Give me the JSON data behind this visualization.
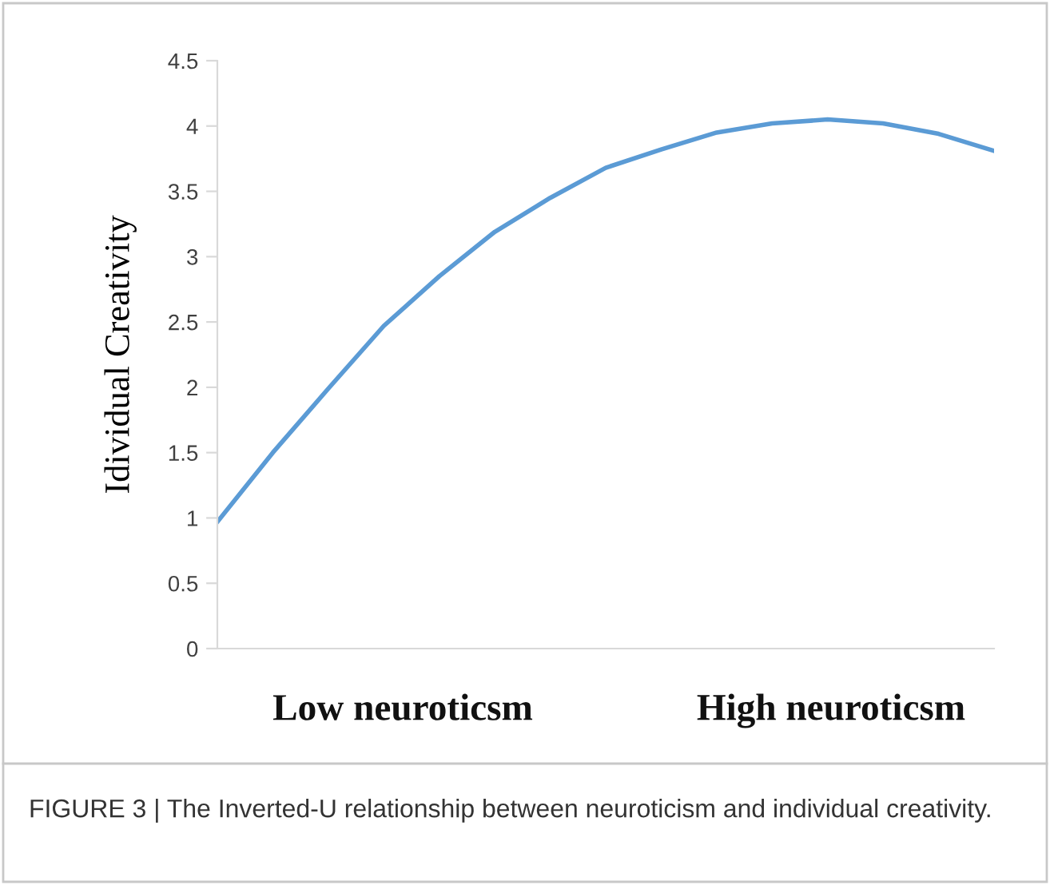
{
  "chart_data": {
    "type": "line",
    "ylabel": "Idividual Creativity",
    "categories": [
      null,
      null,
      null,
      null,
      null,
      null,
      null,
      null,
      null,
      null,
      null,
      null,
      null,
      null,
      null
    ],
    "series": [
      {
        "color": "#5b9bd5",
        "values": [
          0.97,
          1.5,
          1.99,
          2.47,
          2.85,
          3.19,
          3.45,
          3.68,
          3.82,
          3.95,
          4.02,
          4.05,
          4.02,
          3.94,
          3.81
        ]
      }
    ],
    "ylim": [
      0,
      4.5
    ],
    "yticks": [
      0,
      0.5,
      1,
      1.5,
      2,
      2.5,
      3,
      3.5,
      4,
      4.5
    ],
    "grid": false,
    "legend": false,
    "marker": "none",
    "line_style": "solid",
    "annotations": [
      "Low neuroticsm",
      "High neuroticsm",
      "FIGURE 3 | The Inverted-U relationship between neuroticism and individual creativity."
    ]
  }
}
